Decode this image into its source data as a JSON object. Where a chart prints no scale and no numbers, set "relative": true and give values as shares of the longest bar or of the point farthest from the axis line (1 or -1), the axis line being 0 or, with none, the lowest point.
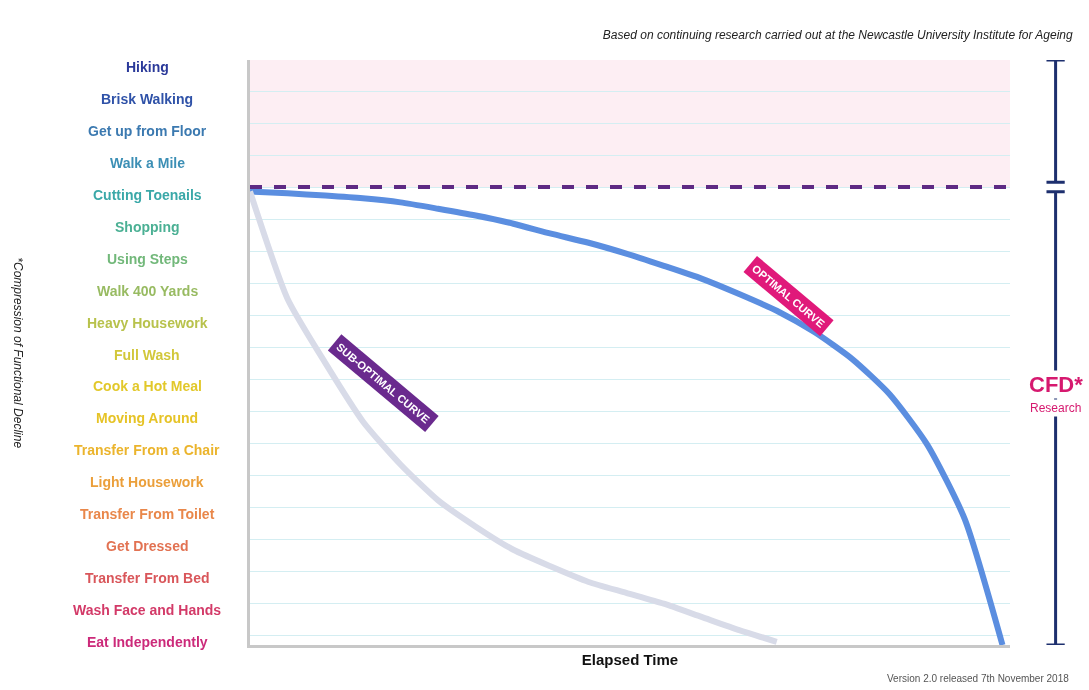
{
  "chart_data": {
    "type": "line",
    "title": "Based on continuing research carried out at the Newcastle University Institute for Ageing",
    "xlabel": "Elapsed Time",
    "relative": true,
    "categories": [
      null,
      null,
      null,
      null,
      null,
      null,
      null,
      null,
      null,
      null,
      null,
      null,
      null,
      null,
      null,
      null,
      null,
      null,
      null,
      null,
      null
    ],
    "series": [
      {
        "name": "OPTIMAL CURVE",
        "color": "#5b8ee0",
        "values": [
          1.0,
          0.996,
          0.991,
          0.985,
          0.976,
          0.962,
          0.947,
          0.929,
          0.907,
          0.887,
          0.863,
          0.836,
          0.808,
          0.774,
          0.737,
          0.69,
          0.631,
          0.553,
          0.442,
          0.277,
          0.0
        ]
      },
      {
        "name": "SUB-OPTIMAL CURVE",
        "color": "#d8dbe8",
        "values": [
          1.0,
          0.763,
          0.622,
          0.493,
          0.398,
          0.319,
          0.261,
          0.21,
          0.173,
          0.139,
          0.115,
          0.091,
          0.062,
          0.033,
          0.007,
          null,
          null,
          null,
          null,
          null,
          null
        ]
      }
    ],
    "ref_lines": [
      {
        "axis": "y",
        "value": 1.01,
        "color": "#5e2a84",
        "line_style": "dashed"
      }
    ],
    "bands": [
      {
        "axis": "y",
        "from": 1.01,
        "to": 1.29,
        "color": "#fdeef3"
      }
    ],
    "grid": "y",
    "annotations": [
      "Hiking",
      "Brisk Walking",
      "Get up from Floor",
      "Walk a Mile",
      "Cutting Toenails",
      "Shopping",
      "Using Steps",
      "Walk 400 Yards",
      "Heavy Housework",
      "Full Wash",
      "Cook a Hot Meal",
      "Moving Around",
      "Transfer From a Chair",
      "Light Housework",
      "Transfer From Toilet",
      "Get Dressed",
      "Transfer From Bed",
      "Wash Face and Hands",
      "Eat Independently",
      "*Compression of Functional Decline",
      "Version 2.0 released 7th November 2018",
      "CFD*",
      "Research"
    ]
  }
}
